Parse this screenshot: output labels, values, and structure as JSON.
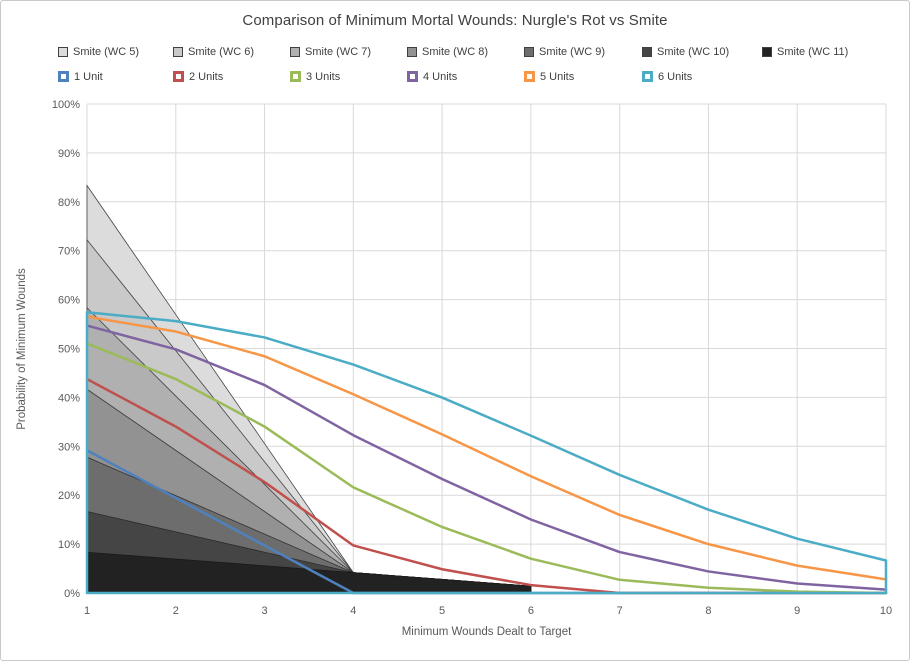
{
  "title": "Comparison of Minimum Mortal Wounds: Nurgle's Rot vs Smite",
  "legend": {
    "rows": 2,
    "position": "top-left"
  },
  "chart_data": {
    "type": "line",
    "x": [
      1,
      2,
      3,
      4,
      5,
      6,
      7,
      8,
      9,
      10
    ],
    "xlabel": "Minimum  Wounds Dealt to Target",
    "ylabel": "Probability of Minimum  Wounds",
    "ylim": [
      0,
      100
    ],
    "yticks": [
      0,
      10,
      20,
      30,
      40,
      50,
      60,
      70,
      80,
      90,
      100
    ],
    "ytick_suffix": "%",
    "grid": true,
    "series": [
      {
        "name": "Smite (WC 5)",
        "type": "area",
        "fill": "#dcdcdc",
        "stroke": "#444444",
        "values": [
          83.33,
          56.94,
          30.56,
          4.17,
          2.78,
          1.39,
          null,
          null,
          null,
          null
        ]
      },
      {
        "name": "Smite (WC 6)",
        "type": "area",
        "fill": "#c9c9c9",
        "stroke": "#444444",
        "values": [
          72.22,
          49.54,
          26.85,
          4.17,
          2.78,
          1.39,
          null,
          null,
          null,
          null
        ]
      },
      {
        "name": "Smite (WC 7)",
        "type": "area",
        "fill": "#b0b0b0",
        "stroke": "#3f3f3f",
        "values": [
          58.33,
          40.28,
          22.22,
          4.17,
          2.78,
          1.39,
          null,
          null,
          null,
          null
        ]
      },
      {
        "name": "Smite (WC 8)",
        "type": "area",
        "fill": "#929292",
        "stroke": "#3a3a3a",
        "values": [
          41.67,
          29.17,
          16.67,
          4.17,
          2.78,
          1.39,
          null,
          null,
          null,
          null
        ]
      },
      {
        "name": "Smite (WC 9)",
        "type": "area",
        "fill": "#6d6d6d",
        "stroke": "#333333",
        "values": [
          27.78,
          19.91,
          12.04,
          4.17,
          2.78,
          1.39,
          null,
          null,
          null,
          null
        ]
      },
      {
        "name": "Smite (WC 10)",
        "type": "area",
        "fill": "#454545",
        "stroke": "#2a2a2a",
        "values": [
          16.67,
          12.5,
          8.33,
          4.17,
          2.78,
          1.39,
          null,
          null,
          null,
          null
        ]
      },
      {
        "name": "Smite (WC 11)",
        "type": "area",
        "fill": "#222222",
        "stroke": "#1a1a1a",
        "values": [
          8.33,
          6.94,
          5.56,
          4.17,
          2.78,
          1.39,
          null,
          null,
          null,
          null
        ]
      },
      {
        "name": "1 Unit",
        "type": "line",
        "color": "#4F81BD",
        "values": [
          29.17,
          19.44,
          9.72,
          0.0,
          0.0,
          0.0,
          0.0,
          0.0,
          0.0,
          0.0
        ]
      },
      {
        "name": "2 Units",
        "type": "line",
        "color": "#C0504D",
        "values": [
          43.75,
          34.03,
          22.69,
          9.72,
          4.86,
          1.62,
          0.0,
          0.0,
          0.0,
          0.0
        ]
      },
      {
        "name": "3 Units",
        "type": "line",
        "color": "#9BBB59",
        "values": [
          51.04,
          43.75,
          34.03,
          21.6,
          13.5,
          7.02,
          2.7,
          1.08,
          0.27,
          0.0
        ]
      },
      {
        "name": "4 Units",
        "type": "line",
        "color": "#8064A2",
        "values": [
          54.69,
          49.83,
          42.53,
          32.27,
          23.32,
          15.03,
          8.37,
          4.41,
          1.94,
          0.68
        ]
      },
      {
        "name": "5 Units",
        "type": "line",
        "color": "#F79646",
        "values": [
          56.51,
          53.47,
          48.41,
          40.64,
          32.43,
          23.87,
          15.96,
          9.99,
          5.6,
          2.79
        ]
      },
      {
        "name": "6 Units",
        "type": "line-closed",
        "color": "#4BACC6",
        "values": [
          57.42,
          55.6,
          52.26,
          46.72,
          39.97,
          32.18,
          24.14,
          17.04,
          11.1,
          6.65
        ]
      }
    ]
  }
}
